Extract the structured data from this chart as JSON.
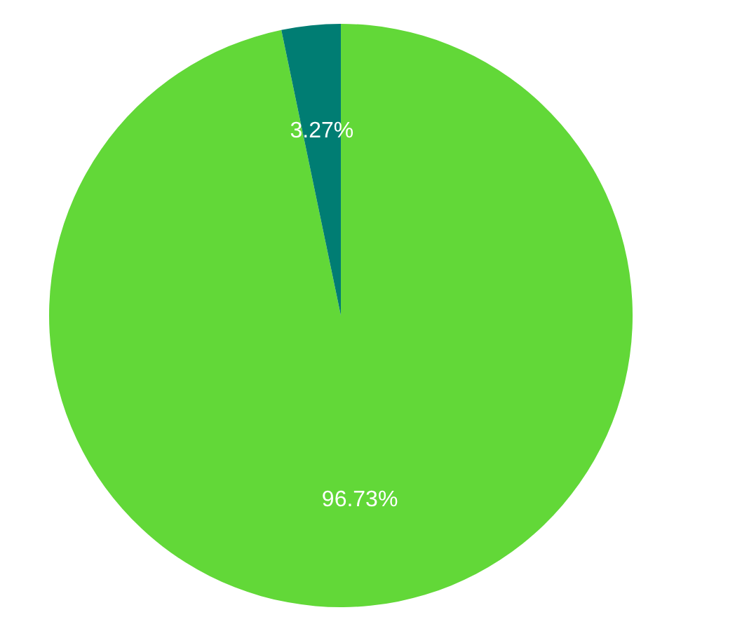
{
  "chart_data": {
    "type": "pie",
    "categories": [
      null,
      null
    ],
    "values": [
      96.73,
      3.27
    ],
    "colors": [
      "#62d838",
      "#007d73"
    ],
    "value_labels": [
      "96.73%",
      "3.27%"
    ],
    "legend": false
  }
}
